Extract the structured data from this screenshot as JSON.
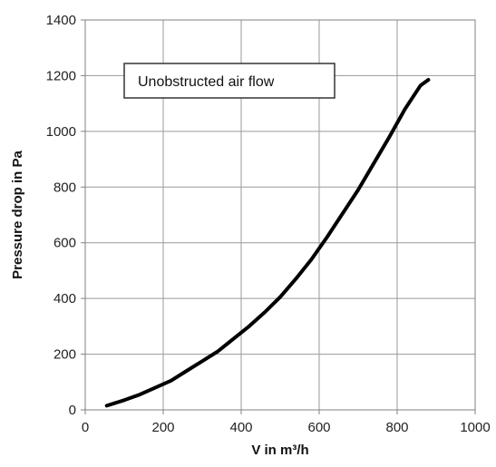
{
  "chart_data": {
    "type": "line",
    "title": "",
    "xlabel": "V in m³/h",
    "ylabel": "Pressure drop in Pa",
    "xlim": [
      0,
      1000
    ],
    "ylim": [
      0,
      1400
    ],
    "x_ticks": [
      0,
      200,
      400,
      600,
      800,
      1000
    ],
    "y_ticks": [
      0,
      200,
      400,
      600,
      800,
      1000,
      1200,
      1400
    ],
    "x_tick_labels": [
      "0",
      "200",
      "400",
      "600",
      "800",
      "1000"
    ],
    "y_tick_labels": [
      "0",
      "200",
      "400",
      "600",
      "800",
      "1000",
      "1200",
      "1400"
    ],
    "grid": true,
    "legend": "none",
    "series": [
      {
        "color": "#000000",
        "x": [
          55,
          100,
          140,
          180,
          220,
          260,
          300,
          340,
          380,
          420,
          460,
          500,
          540,
          580,
          620,
          660,
          700,
          740,
          780,
          820,
          860,
          880
        ],
        "y": [
          15,
          35,
          55,
          80,
          105,
          140,
          175,
          210,
          255,
          300,
          350,
          405,
          470,
          540,
          620,
          705,
          790,
          885,
          980,
          1080,
          1165,
          1185
        ]
      }
    ],
    "annotations": [
      {
        "text": "Unobstructed air flow",
        "position": "upper-left inside plot area"
      }
    ]
  }
}
